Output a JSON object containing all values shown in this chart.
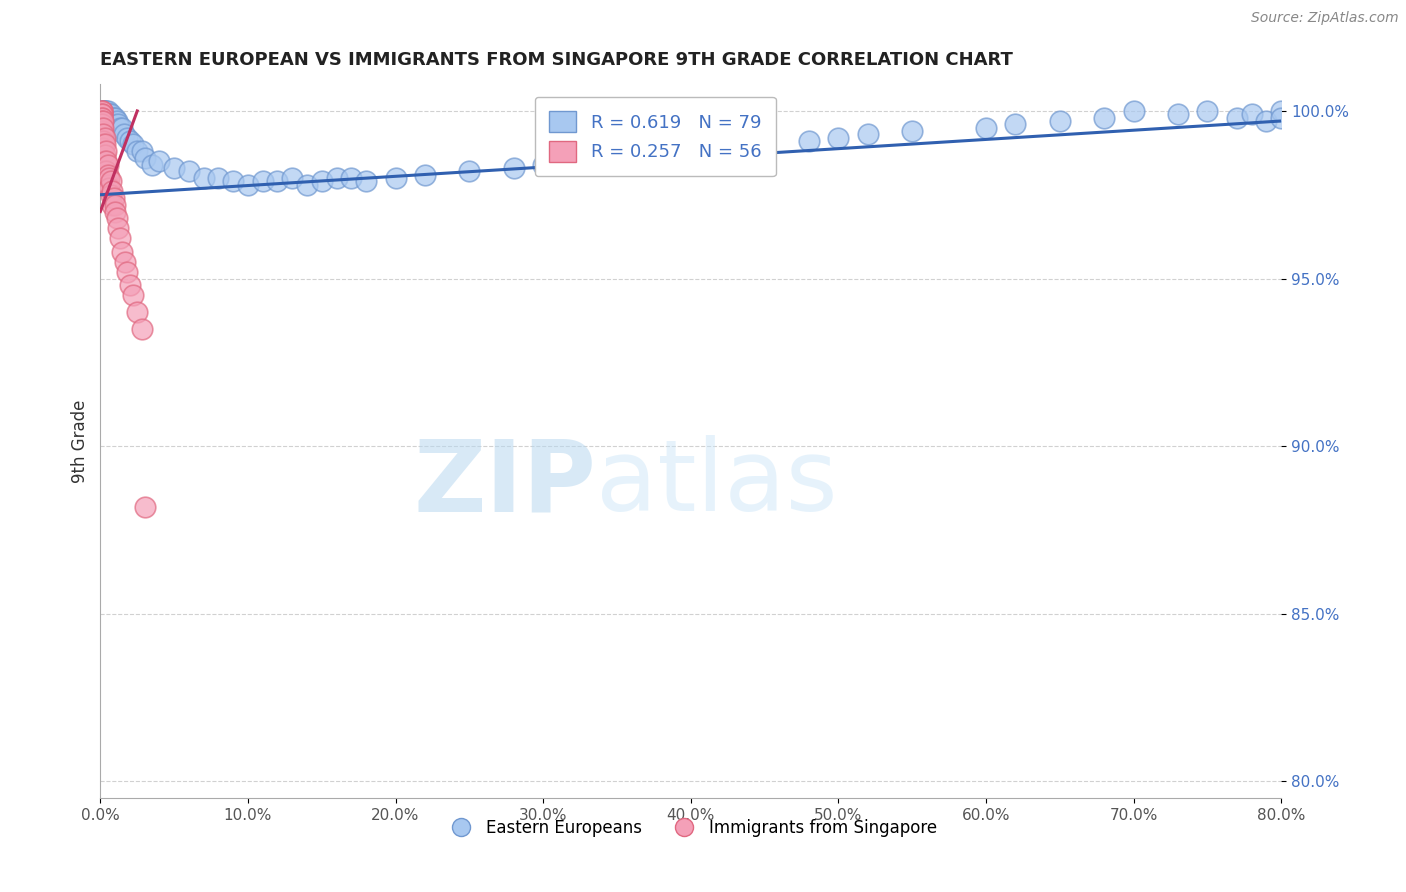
{
  "title": "EASTERN EUROPEAN VS IMMIGRANTS FROM SINGAPORE 9TH GRADE CORRELATION CHART",
  "source": "Source: ZipAtlas.com",
  "ylabel": "9th Grade",
  "xlim": [
    0.0,
    0.8
  ],
  "ylim": [
    0.795,
    1.008
  ],
  "xtick_labels": [
    "0.0%",
    "10.0%",
    "20.0%",
    "30.0%",
    "40.0%",
    "50.0%",
    "60.0%",
    "70.0%",
    "80.0%"
  ],
  "xtick_vals": [
    0.0,
    0.1,
    0.2,
    0.3,
    0.4,
    0.5,
    0.6,
    0.7,
    0.8
  ],
  "ytick_labels": [
    "80.0%",
    "85.0%",
    "90.0%",
    "95.0%",
    "100.0%"
  ],
  "ytick_vals": [
    0.8,
    0.85,
    0.9,
    0.95,
    1.0
  ],
  "blue_color": "#a8c8f0",
  "pink_color": "#f4a0b8",
  "blue_edge": "#7098d0",
  "pink_edge": "#e06880",
  "trend_blue": "#3060b0",
  "trend_pink": "#c03060",
  "R_blue": 0.619,
  "N_blue": 79,
  "R_pink": 0.257,
  "N_pink": 56,
  "blue_trend_x": [
    0.0,
    0.8
  ],
  "blue_trend_y": [
    0.975,
    0.997
  ],
  "pink_trend_x": [
    0.0,
    0.025
  ],
  "pink_trend_y": [
    0.97,
    1.0
  ],
  "blue_x": [
    0.001,
    0.001,
    0.001,
    0.002,
    0.002,
    0.002,
    0.003,
    0.003,
    0.003,
    0.003,
    0.004,
    0.004,
    0.004,
    0.005,
    0.005,
    0.005,
    0.006,
    0.006,
    0.007,
    0.007,
    0.008,
    0.008,
    0.009,
    0.01,
    0.01,
    0.011,
    0.012,
    0.013,
    0.015,
    0.016,
    0.018,
    0.02,
    0.022,
    0.025,
    0.028,
    0.03,
    0.035,
    0.04,
    0.05,
    0.06,
    0.07,
    0.08,
    0.09,
    0.1,
    0.11,
    0.12,
    0.13,
    0.14,
    0.15,
    0.16,
    0.17,
    0.18,
    0.2,
    0.22,
    0.25,
    0.28,
    0.3,
    0.32,
    0.35,
    0.38,
    0.4,
    0.42,
    0.45,
    0.48,
    0.5,
    0.52,
    0.55,
    0.6,
    0.62,
    0.65,
    0.68,
    0.7,
    0.73,
    0.75,
    0.77,
    0.78,
    0.79,
    0.8,
    0.8
  ],
  "blue_y": [
    1.0,
    1.0,
    0.999,
    1.0,
    1.0,
    0.999,
    1.0,
    1.0,
    0.999,
    0.998,
    1.0,
    0.999,
    0.998,
    1.0,
    0.999,
    0.998,
    0.999,
    0.997,
    0.999,
    0.997,
    0.998,
    0.996,
    0.998,
    0.998,
    0.996,
    0.997,
    0.996,
    0.995,
    0.995,
    0.993,
    0.992,
    0.991,
    0.99,
    0.988,
    0.988,
    0.986,
    0.984,
    0.985,
    0.983,
    0.982,
    0.98,
    0.98,
    0.979,
    0.978,
    0.979,
    0.979,
    0.98,
    0.978,
    0.979,
    0.98,
    0.98,
    0.979,
    0.98,
    0.981,
    0.982,
    0.983,
    0.984,
    0.985,
    0.986,
    0.987,
    0.988,
    0.989,
    0.99,
    0.991,
    0.992,
    0.993,
    0.994,
    0.995,
    0.996,
    0.997,
    0.998,
    1.0,
    0.999,
    1.0,
    0.998,
    0.999,
    0.997,
    1.0,
    0.998
  ],
  "pink_x": [
    0.001,
    0.001,
    0.001,
    0.001,
    0.001,
    0.001,
    0.001,
    0.001,
    0.001,
    0.001,
    0.001,
    0.001,
    0.001,
    0.001,
    0.001,
    0.002,
    0.002,
    0.002,
    0.002,
    0.002,
    0.002,
    0.002,
    0.002,
    0.002,
    0.003,
    0.003,
    0.003,
    0.003,
    0.003,
    0.004,
    0.004,
    0.004,
    0.004,
    0.005,
    0.005,
    0.005,
    0.006,
    0.006,
    0.007,
    0.007,
    0.008,
    0.008,
    0.009,
    0.01,
    0.01,
    0.011,
    0.012,
    0.013,
    0.015,
    0.017,
    0.018,
    0.02,
    0.022,
    0.025,
    0.028,
    0.03
  ],
  "pink_y": [
    1.0,
    1.0,
    1.0,
    0.999,
    0.999,
    0.998,
    0.998,
    0.997,
    0.996,
    0.995,
    0.994,
    0.993,
    0.992,
    0.99,
    0.988,
    0.997,
    0.995,
    0.993,
    0.991,
    0.99,
    0.989,
    0.987,
    0.985,
    0.983,
    0.992,
    0.99,
    0.987,
    0.985,
    0.982,
    0.988,
    0.985,
    0.982,
    0.98,
    0.984,
    0.981,
    0.978,
    0.98,
    0.977,
    0.979,
    0.975,
    0.976,
    0.972,
    0.974,
    0.972,
    0.97,
    0.968,
    0.965,
    0.962,
    0.958,
    0.955,
    0.952,
    0.948,
    0.945,
    0.94,
    0.935,
    0.882
  ]
}
